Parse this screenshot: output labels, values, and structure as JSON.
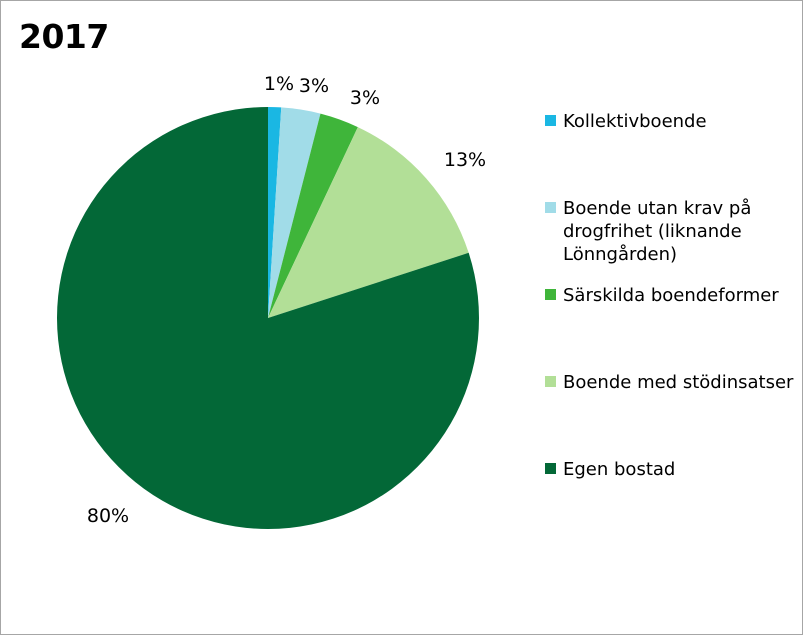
{
  "chart_data": {
    "type": "pie",
    "title": "2017",
    "legend_position": "right",
    "categories": [
      "Kollektivboende",
      "Boende utan krav på drogfrihet (liknande Lönngården)",
      "Särskilda boendeformer",
      "Boende med stödinsatser",
      "Egen bostad"
    ],
    "values": [
      1,
      3,
      3,
      13,
      80
    ],
    "data_labels": [
      "1%",
      "3%",
      "3%",
      "13%",
      "80%"
    ],
    "colors": [
      "#1ab7e3",
      "#a1dce8",
      "#3fb53a",
      "#b2df97",
      "#036837"
    ]
  }
}
